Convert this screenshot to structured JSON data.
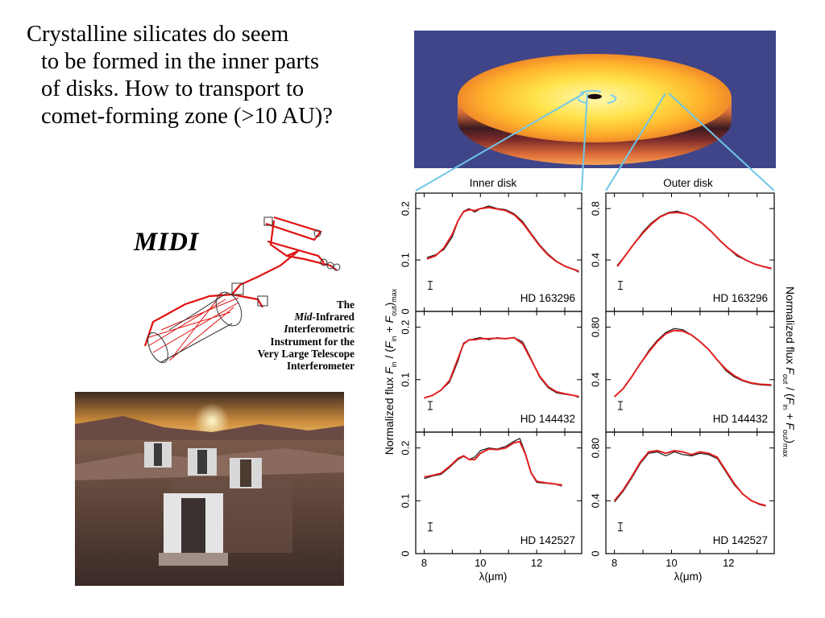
{
  "slide": {
    "text_lines": [
      "Crystalline silicates do seem",
      "to be formed in the inner parts",
      "of disks. How to transport to",
      "comet-forming zone (>10 AU)?"
    ]
  },
  "midi": {
    "logo": "MIDI",
    "caption": {
      "line1": "The",
      "line2_em": "Mid",
      "line2_rest": "-Infrared",
      "line3_em": "I",
      "line3_rest": "nterferometric",
      "line4": "Instrument for the",
      "line5": "Very Large Telescope",
      "line6": "Interferometer"
    }
  },
  "colors": {
    "slide_background": "#ffffff",
    "disk_panel_background": "#3f4588",
    "connector_lines": "#6fc6e8",
    "observed_spectrum": "#1a1a1a",
    "model_fit": "#e02020",
    "optics_beam": "#e01010"
  },
  "chart_data": [
    {
      "type": "line",
      "panel": "Inner disk",
      "title": "Inner disk",
      "star": "HD 163296",
      "xlabel": "",
      "ylabel": "",
      "xlim": [
        7.7,
        13.6
      ],
      "ylim": [
        0,
        0.23
      ],
      "yticks": [
        {
          "v": 0,
          "label": "0"
        },
        {
          "v": 0.1,
          "label": "0.1"
        },
        {
          "v": 0.2,
          "label": "0.2"
        }
      ],
      "series": [
        {
          "role": "observed",
          "x": [
            8.1,
            8.4,
            8.7,
            9.0,
            9.2,
            9.4,
            9.6,
            9.8,
            10.0,
            10.3,
            10.6,
            10.9,
            11.2,
            11.5,
            11.8,
            12.1,
            12.4,
            12.7,
            13.0,
            13.3,
            13.5
          ],
          "values": [
            0.105,
            0.11,
            0.12,
            0.145,
            0.175,
            0.195,
            0.2,
            0.193,
            0.2,
            0.205,
            0.2,
            0.198,
            0.19,
            0.175,
            0.152,
            0.13,
            0.112,
            0.098,
            0.088,
            0.082,
            0.076
          ]
        },
        {
          "role": "model",
          "x": [
            8.1,
            8.4,
            8.7,
            9.0,
            9.2,
            9.4,
            9.6,
            9.8,
            10.0,
            10.3,
            10.6,
            10.9,
            11.2,
            11.5,
            11.8,
            12.1,
            12.4,
            12.7,
            13.0,
            13.3,
            13.5
          ],
          "values": [
            0.102,
            0.108,
            0.123,
            0.15,
            0.176,
            0.194,
            0.198,
            0.196,
            0.2,
            0.202,
            0.199,
            0.196,
            0.188,
            0.172,
            0.15,
            0.128,
            0.11,
            0.097,
            0.088,
            0.082,
            0.078
          ]
        }
      ]
    },
    {
      "type": "line",
      "panel": "Outer disk",
      "title": "Outer disk",
      "star": "HD 163296",
      "xlabel": "",
      "ylabel": "",
      "xlim": [
        7.7,
        13.6
      ],
      "ylim": [
        0,
        0.92
      ],
      "yticks": [
        {
          "v": 0.4,
          "label": "0.4"
        },
        {
          "v": 0.8,
          "label": "0.8"
        }
      ],
      "series": [
        {
          "role": "observed",
          "x": [
            8.1,
            8.4,
            8.7,
            9.0,
            9.3,
            9.6,
            9.9,
            10.2,
            10.5,
            10.8,
            11.1,
            11.4,
            11.7,
            12.0,
            12.3,
            12.6,
            12.9,
            13.2,
            13.5
          ],
          "values": [
            0.36,
            0.44,
            0.53,
            0.62,
            0.69,
            0.74,
            0.77,
            0.78,
            0.76,
            0.73,
            0.68,
            0.62,
            0.55,
            0.49,
            0.43,
            0.4,
            0.37,
            0.35,
            0.33
          ]
        },
        {
          "role": "model",
          "x": [
            8.1,
            8.4,
            8.7,
            9.0,
            9.3,
            9.6,
            9.9,
            10.2,
            10.5,
            10.8,
            11.1,
            11.4,
            11.7,
            12.0,
            12.3,
            12.6,
            12.9,
            13.2,
            13.5
          ],
          "values": [
            0.35,
            0.44,
            0.53,
            0.61,
            0.68,
            0.735,
            0.765,
            0.77,
            0.76,
            0.73,
            0.68,
            0.62,
            0.55,
            0.49,
            0.44,
            0.4,
            0.37,
            0.35,
            0.335
          ]
        }
      ]
    },
    {
      "type": "line",
      "panel": "Inner disk",
      "star": "HD 144432",
      "xlabel": "",
      "ylabel": "Normalized flux F_in / (F_in + F_out)_max",
      "xlim": [
        7.7,
        13.6
      ],
      "ylim": [
        0,
        0.23
      ],
      "yticks": [
        {
          "v": 0.1,
          "label": "0.1"
        },
        {
          "v": 0.2,
          "label": "0.2"
        }
      ],
      "series": [
        {
          "role": "observed",
          "x": [
            8.0,
            8.3,
            8.6,
            8.9,
            9.2,
            9.4,
            9.6,
            9.8,
            10.0,
            10.3,
            10.6,
            10.9,
            11.2,
            11.5,
            11.8,
            12.1,
            12.4,
            12.7,
            13.0,
            13.3,
            13.5
          ],
          "values": [
            0.065,
            0.07,
            0.08,
            0.095,
            0.135,
            0.17,
            0.175,
            0.178,
            0.18,
            0.176,
            0.18,
            0.178,
            0.18,
            0.172,
            0.14,
            0.105,
            0.085,
            0.075,
            0.072,
            0.07,
            0.066
          ]
        },
        {
          "role": "model",
          "x": [
            8.0,
            8.3,
            8.6,
            8.9,
            9.2,
            9.4,
            9.6,
            9.8,
            10.0,
            10.3,
            10.6,
            10.9,
            11.2,
            11.5,
            11.8,
            12.1,
            12.4,
            12.7,
            13.0,
            13.3,
            13.5
          ],
          "values": [
            0.065,
            0.07,
            0.08,
            0.098,
            0.14,
            0.168,
            0.176,
            0.176,
            0.178,
            0.178,
            0.179,
            0.178,
            0.18,
            0.168,
            0.138,
            0.107,
            0.087,
            0.077,
            0.073,
            0.07,
            0.068
          ]
        }
      ]
    },
    {
      "type": "line",
      "panel": "Outer disk",
      "star": "HD 144432",
      "xlabel": "",
      "ylabel": "Normalized flux F_out / (F_in + F_out)_max",
      "xlim": [
        7.7,
        13.6
      ],
      "ylim": [
        0,
        0.92
      ],
      "yticks": [
        {
          "v": 0.4,
          "label": "0.4"
        },
        {
          "v": 0.8,
          "label": "0.80"
        }
      ],
      "series": [
        {
          "role": "observed",
          "x": [
            8.0,
            8.3,
            8.6,
            8.9,
            9.2,
            9.5,
            9.8,
            10.1,
            10.4,
            10.7,
            11.0,
            11.3,
            11.6,
            11.9,
            12.2,
            12.5,
            12.8,
            13.1,
            13.5
          ],
          "values": [
            0.27,
            0.33,
            0.42,
            0.52,
            0.62,
            0.7,
            0.76,
            0.79,
            0.78,
            0.74,
            0.69,
            0.63,
            0.55,
            0.47,
            0.42,
            0.39,
            0.37,
            0.36,
            0.355
          ]
        },
        {
          "role": "model",
          "x": [
            8.0,
            8.3,
            8.6,
            8.9,
            9.2,
            9.5,
            9.8,
            10.1,
            10.4,
            10.7,
            11.0,
            11.3,
            11.6,
            11.9,
            12.2,
            12.5,
            12.8,
            13.1,
            13.5
          ],
          "values": [
            0.27,
            0.33,
            0.42,
            0.52,
            0.61,
            0.69,
            0.75,
            0.775,
            0.77,
            0.74,
            0.69,
            0.63,
            0.55,
            0.48,
            0.43,
            0.395,
            0.375,
            0.365,
            0.36
          ]
        }
      ]
    },
    {
      "type": "line",
      "panel": "Inner disk",
      "star": "HD 142527",
      "xlabel": "λ(μm)",
      "ylabel": "",
      "xlim": [
        7.7,
        13.6
      ],
      "ylim": [
        0,
        0.23
      ],
      "xticks": [
        {
          "v": 8,
          "label": "8"
        },
        {
          "v": 10,
          "label": "10"
        },
        {
          "v": 12,
          "label": "12"
        }
      ],
      "yticks": [
        {
          "v": 0,
          "label": "0"
        },
        {
          "v": 0.1,
          "label": "0.1"
        },
        {
          "v": 0.2,
          "label": "0.2"
        }
      ],
      "series": [
        {
          "role": "observed",
          "x": [
            8.0,
            8.3,
            8.6,
            8.9,
            9.2,
            9.4,
            9.6,
            9.8,
            10.0,
            10.3,
            10.6,
            10.9,
            11.2,
            11.4,
            11.6,
            11.8,
            12.0,
            12.3,
            12.6,
            12.9
          ],
          "values": [
            0.142,
            0.147,
            0.15,
            0.163,
            0.178,
            0.184,
            0.178,
            0.183,
            0.195,
            0.2,
            0.198,
            0.203,
            0.213,
            0.218,
            0.19,
            0.152,
            0.135,
            0.133,
            0.132,
            0.128
          ]
        },
        {
          "role": "model",
          "x": [
            8.0,
            8.3,
            8.6,
            8.9,
            9.2,
            9.4,
            9.6,
            9.8,
            10.0,
            10.3,
            10.6,
            10.9,
            11.2,
            11.4,
            11.6,
            11.8,
            12.0,
            12.3,
            12.6,
            12.9
          ],
          "values": [
            0.145,
            0.148,
            0.152,
            0.165,
            0.18,
            0.185,
            0.178,
            0.178,
            0.19,
            0.198,
            0.197,
            0.2,
            0.21,
            0.212,
            0.188,
            0.153,
            0.137,
            0.134,
            0.132,
            0.13
          ]
        }
      ]
    },
    {
      "type": "line",
      "panel": "Outer disk",
      "star": "HD 142527",
      "xlabel": "λ(μm)",
      "ylabel": "",
      "xlim": [
        7.7,
        13.6
      ],
      "ylim": [
        0,
        0.92
      ],
      "xticks": [
        {
          "v": 8,
          "label": "8"
        },
        {
          "v": 10,
          "label": "10"
        },
        {
          "v": 12,
          "label": "12"
        }
      ],
      "yticks": [
        {
          "v": 0,
          "label": "0"
        },
        {
          "v": 0.4,
          "label": "0.4"
        },
        {
          "v": 0.8,
          "label": "0.80"
        }
      ],
      "series": [
        {
          "role": "observed",
          "x": [
            8.0,
            8.3,
            8.6,
            8.9,
            9.2,
            9.5,
            9.8,
            10.1,
            10.4,
            10.7,
            11.0,
            11.3,
            11.6,
            11.9,
            12.2,
            12.5,
            12.8,
            13.1,
            13.3
          ],
          "values": [
            0.39,
            0.47,
            0.57,
            0.68,
            0.76,
            0.77,
            0.74,
            0.77,
            0.75,
            0.74,
            0.76,
            0.75,
            0.72,
            0.62,
            0.52,
            0.45,
            0.4,
            0.37,
            0.36
          ]
        },
        {
          "role": "model",
          "x": [
            8.0,
            8.3,
            8.6,
            8.9,
            9.2,
            9.5,
            9.8,
            10.1,
            10.4,
            10.7,
            11.0,
            11.3,
            11.6,
            11.9,
            12.2,
            12.5,
            12.8,
            13.1,
            13.3
          ],
          "values": [
            0.4,
            0.48,
            0.58,
            0.69,
            0.77,
            0.78,
            0.76,
            0.78,
            0.77,
            0.75,
            0.77,
            0.76,
            0.73,
            0.63,
            0.53,
            0.45,
            0.4,
            0.375,
            0.365
          ]
        }
      ]
    }
  ]
}
